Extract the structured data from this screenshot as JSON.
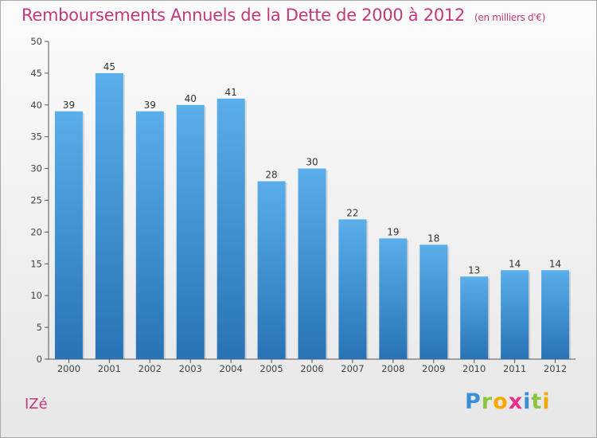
{
  "title": "Remboursements Annuels de la Dette de 2000 à 2012",
  "unit_note": "(en milliers d'€)",
  "commune": "IZé",
  "logo": {
    "letters": [
      "P",
      "r",
      "o",
      "x",
      "i",
      "t",
      "i"
    ],
    "colors": [
      "#3a8fd6",
      "#8cc63f",
      "#f7a800",
      "#e8308a",
      "#3a8fd6",
      "#8cc63f",
      "#f7a800"
    ]
  },
  "colors": {
    "title": "#c0397a",
    "bar_top": "#5aaeea",
    "bar_bottom": "#2873b5",
    "axis": "#555555",
    "grid": "#d0d0d0"
  },
  "chart_data": {
    "type": "bar",
    "categories": [
      "2000",
      "2001",
      "2002",
      "2003",
      "2004",
      "2005",
      "2006",
      "2007",
      "2008",
      "2009",
      "2010",
      "2011",
      "2012"
    ],
    "values": [
      39,
      45,
      39,
      40,
      41,
      28,
      30,
      22,
      19,
      18,
      13,
      14,
      14
    ],
    "ylim": [
      0,
      50
    ],
    "yticks": [
      0,
      5,
      10,
      15,
      20,
      25,
      30,
      35,
      40,
      45,
      50
    ],
    "xlabel": "",
    "ylabel": "",
    "grid": false
  }
}
